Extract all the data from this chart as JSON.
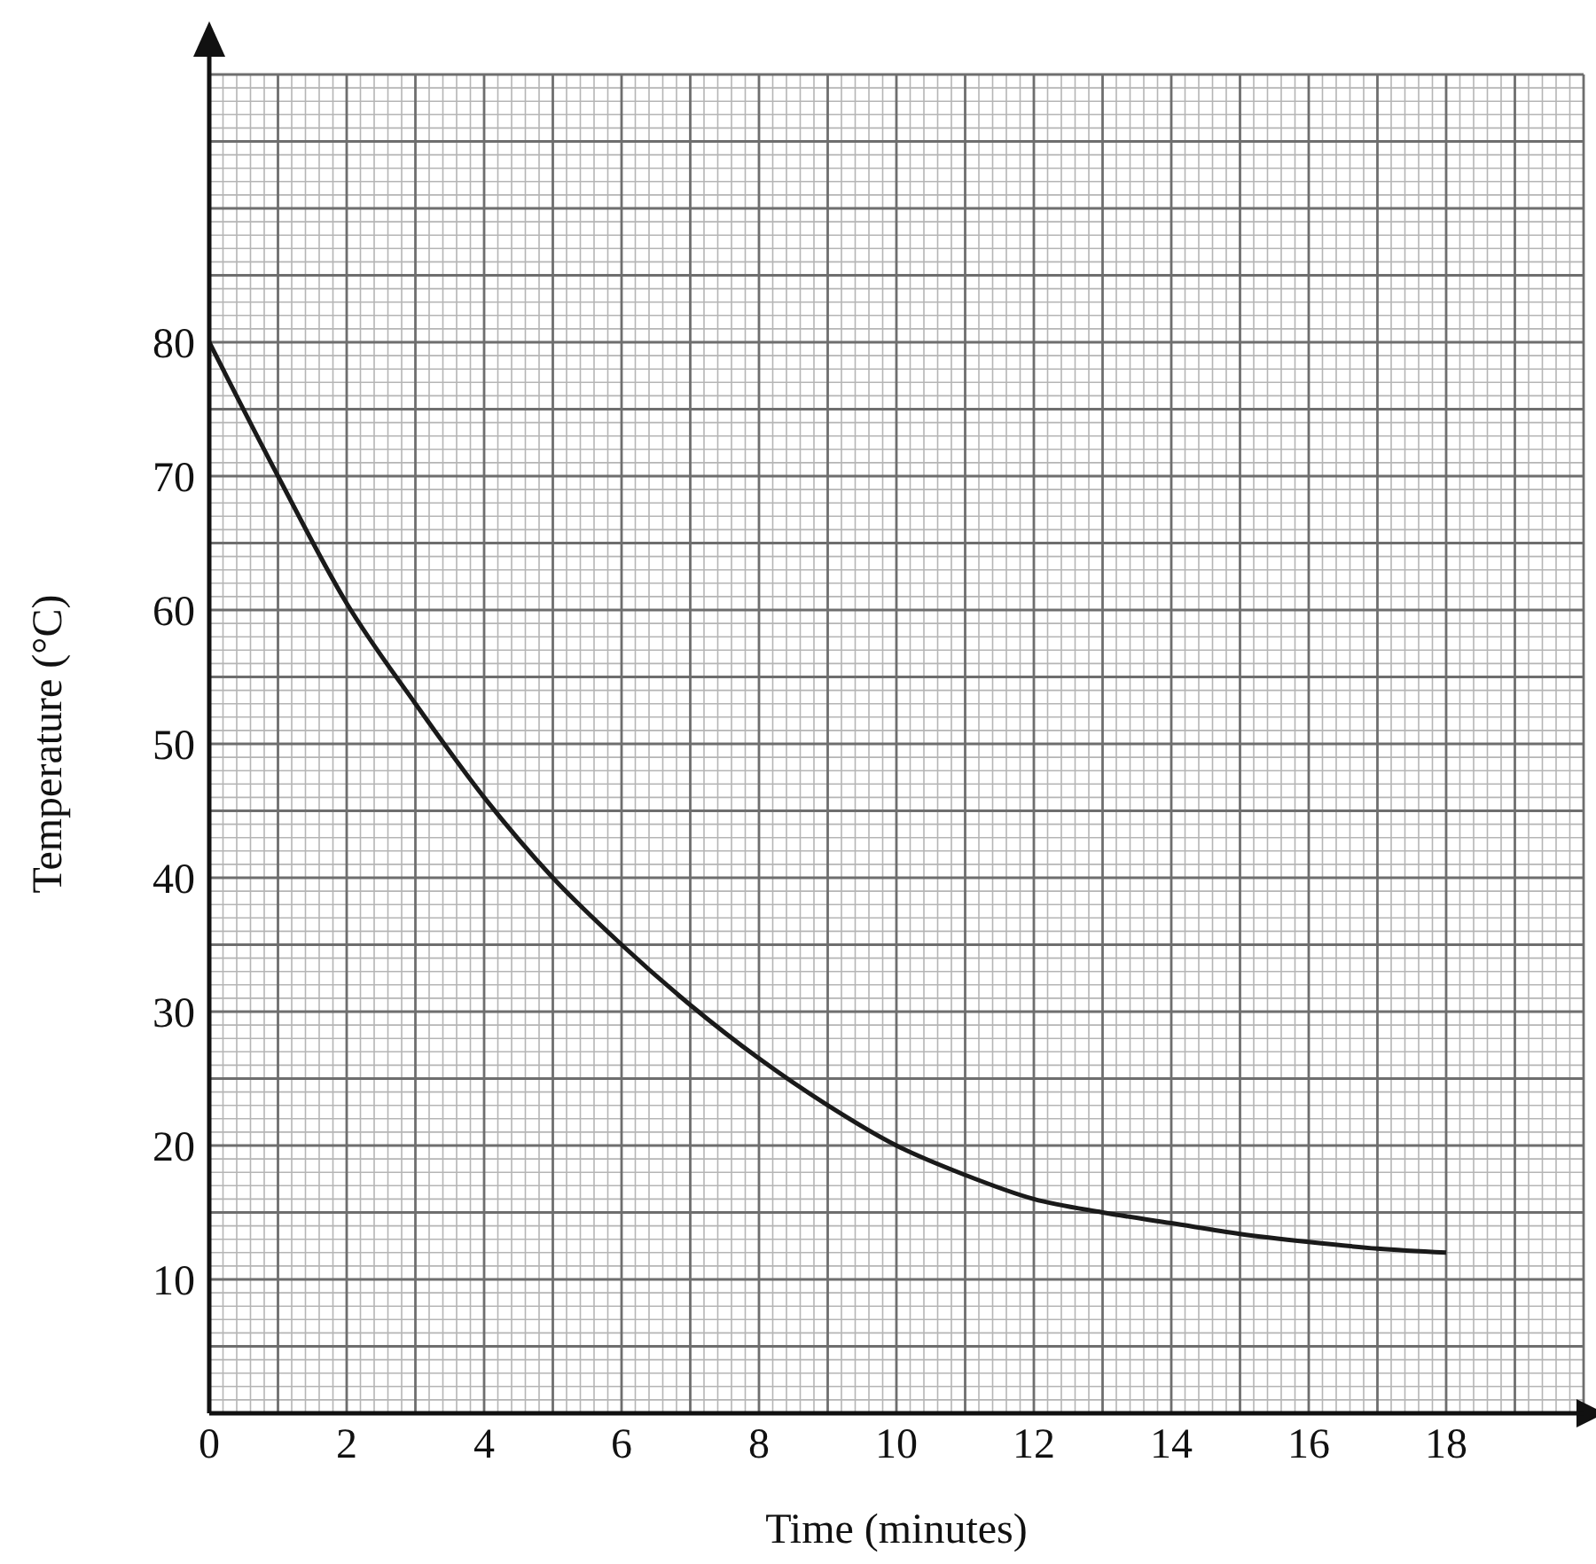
{
  "chart_data": {
    "type": "line",
    "xlabel": "Time (minutes)",
    "ylabel": "Temperature (°C)",
    "x": [
      0,
      1,
      2,
      3,
      4,
      5,
      6,
      7,
      8,
      9,
      10,
      11,
      12,
      13,
      14,
      15,
      16,
      17,
      18
    ],
    "series": [
      {
        "color": "#1a1a1a",
        "values": [
          80,
          70,
          60.5,
          53,
          46,
          40,
          35,
          30.5,
          26.5,
          23,
          20,
          17.8,
          16,
          15,
          14.2,
          13.4,
          12.8,
          12.3,
          12
        ]
      }
    ],
    "xlim": [
      0,
      20
    ],
    "xticks": [
      0,
      {
        "value": 1,
        "label": null
      },
      2,
      {
        "value": 3,
        "label": null
      },
      4,
      {
        "value": 5,
        "label": null
      },
      6,
      {
        "value": 7,
        "label": null
      },
      8,
      {
        "value": 9,
        "label": null
      },
      10,
      {
        "value": 11,
        "label": null
      },
      12,
      {
        "value": 13,
        "label": null
      },
      14,
      {
        "value": 15,
        "label": null
      },
      16,
      {
        "value": 17,
        "label": null
      },
      18,
      {
        "value": 19,
        "label": null
      },
      {
        "value": 20,
        "label": null
      }
    ],
    "ylim": [
      0,
      100
    ],
    "yticks": [
      {
        "value": 0,
        "label": null
      },
      {
        "value": 5,
        "label": null
      },
      10,
      {
        "value": 15,
        "label": null
      },
      20,
      {
        "value": 25,
        "label": null
      },
      30,
      {
        "value": 35,
        "label": null
      },
      40,
      {
        "value": 45,
        "label": null
      },
      50,
      {
        "value": 55,
        "label": null
      },
      60,
      {
        "value": 65,
        "label": null
      },
      70,
      {
        "value": 75,
        "label": null
      },
      80,
      {
        "value": 85,
        "label": null
      },
      {
        "value": 90,
        "label": null
      },
      {
        "value": 95,
        "label": null
      },
      {
        "value": 100,
        "label": null
      }
    ],
    "grid": true,
    "marker": "none",
    "line_style": "solid"
  }
}
